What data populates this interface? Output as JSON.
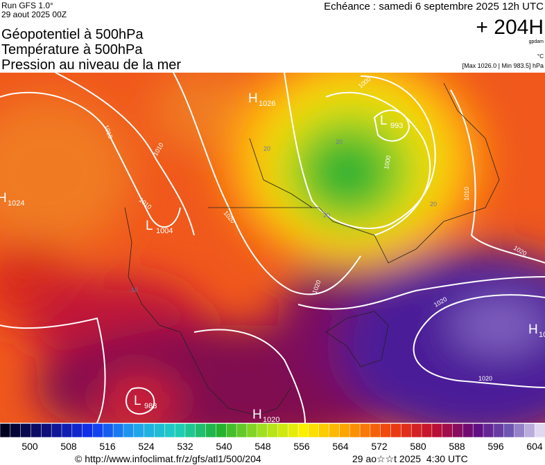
{
  "header": {
    "run": "Run GFS 1.0°",
    "date": "29 aout 2025 00Z",
    "titles": [
      "Géopotentiel à 500hPa",
      "Température à 500hPa",
      "Pression au niveau de la mer"
    ],
    "valid": "Echéance : samedi 6 septembre 2025 12h UTC",
    "lead": "+ 204H",
    "unit_geo": "gpdam",
    "unit_temp": "°C",
    "range": "[Max 1026.0 | Min 983.5] hPa"
  },
  "map": {
    "systems": [
      {
        "type": "H",
        "value": 1026
      },
      {
        "type": "L",
        "value": 993
      },
      {
        "type": "H",
        "value": 1024
      },
      {
        "type": "L",
        "value": 1004
      },
      {
        "type": "L",
        "value": 983
      },
      {
        "type": "H",
        "value": 1020
      },
      {
        "type": "H",
        "value": 10
      }
    ],
    "isobar_labels": [
      1010,
      1010,
      1010,
      1020,
      1000,
      1020,
      1020,
      1020,
      1020,
      1010,
      1000
    ],
    "temp_labels": [
      20,
      20,
      20,
      20,
      -10
    ]
  },
  "legend": {
    "ticks": [
      500,
      508,
      516,
      524,
      532,
      540,
      548,
      556,
      564,
      572,
      580,
      588,
      596,
      604
    ]
  },
  "footer": {
    "source": "© http://www.infoclimat.fr/z/gfs/atl1/500/204",
    "timestamp": "29 ao☆☆t 2025  4:30 UTC"
  }
}
